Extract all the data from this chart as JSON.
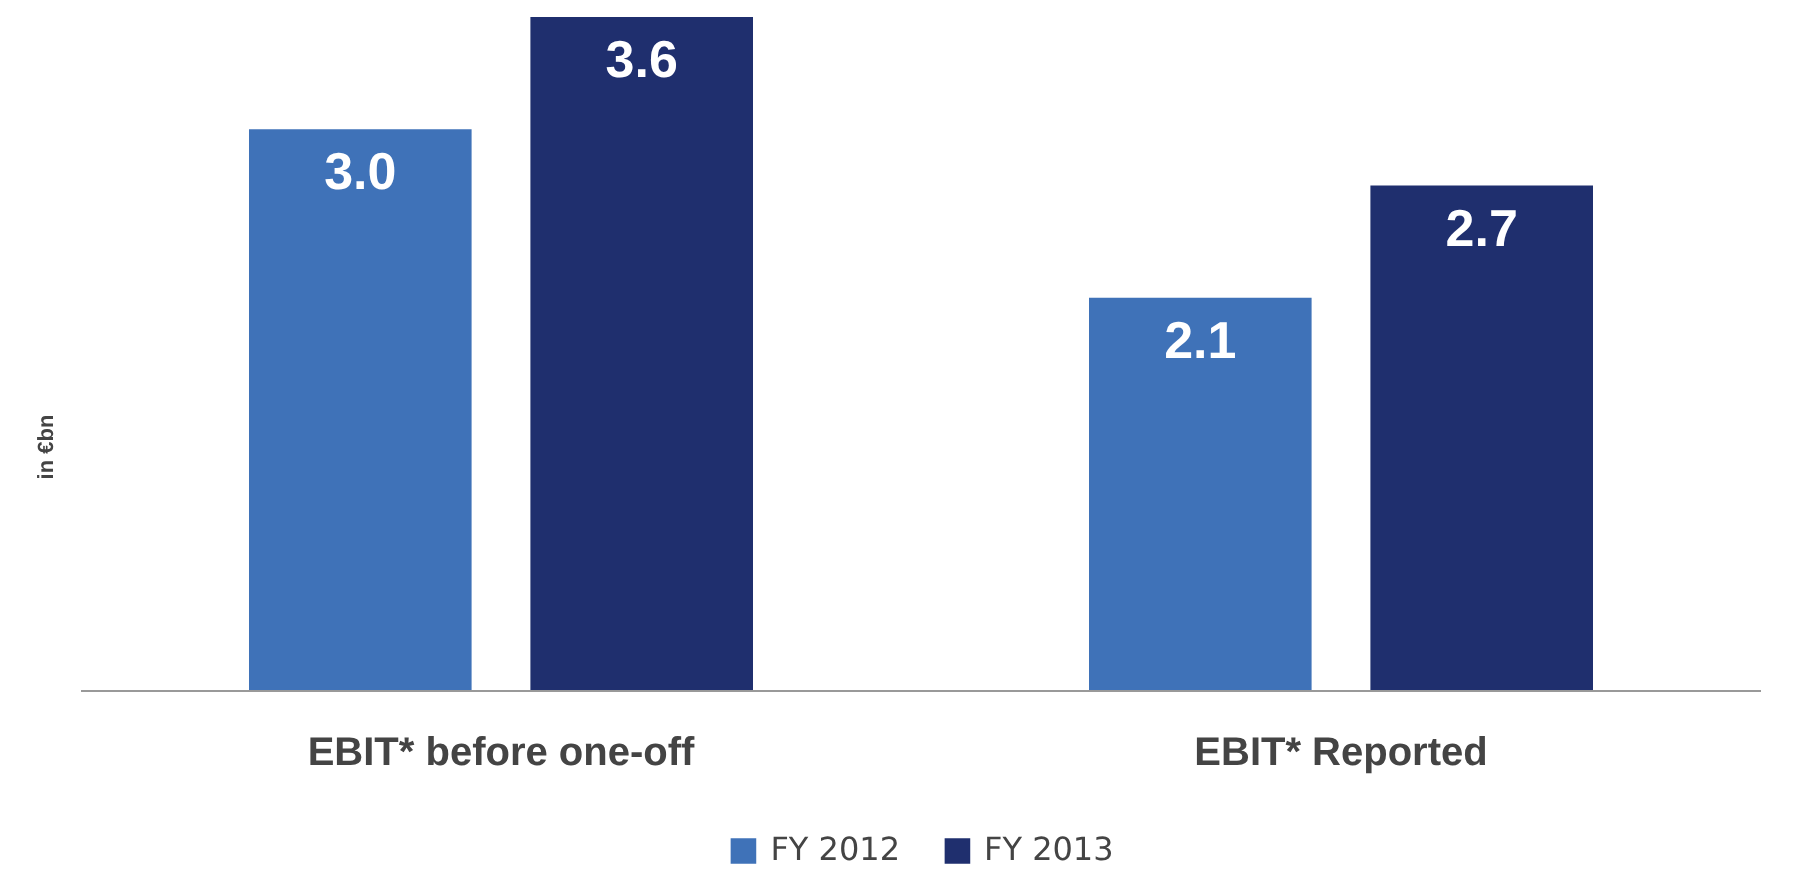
{
  "chart_data": {
    "type": "bar",
    "ylabel": "in €bn",
    "categories": [
      "EBIT* before one-off",
      "EBIT* Reported"
    ],
    "series": [
      {
        "name": "FY 2012",
        "color": "#3f72b8",
        "values": [
          3.0,
          2.1
        ],
        "value_labels": [
          "3.0",
          "2.1"
        ]
      },
      {
        "name": "FY 2013",
        "color": "#1f2f6e",
        "values": [
          3.6,
          2.7
        ],
        "value_labels": [
          "3.6",
          "2.7"
        ]
      }
    ],
    "legend": "bottom"
  }
}
